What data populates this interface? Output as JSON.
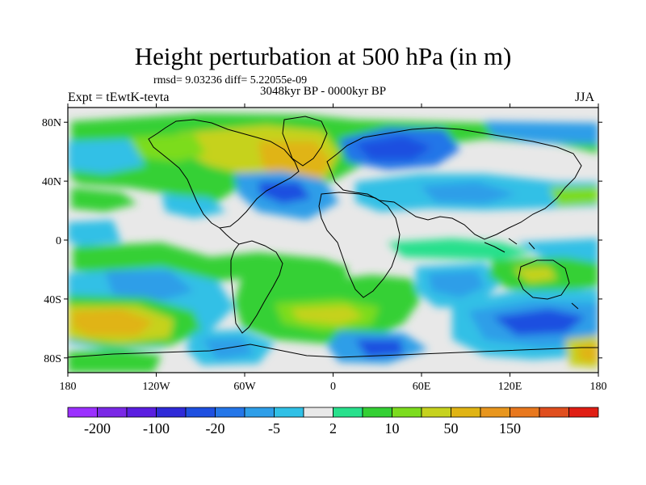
{
  "figure": {
    "title": "Height perturbation at 500 hPa (in m)",
    "stats": "rmsd= 9.03236 diff= 5.22055e-09",
    "period": "3048kyr BP - 0000kyr BP",
    "experiment": "Expt = tEwtK-tevta",
    "season": "JJA"
  },
  "map": {
    "projection": "cylindrical equidistant",
    "lon_range": [
      -180,
      180
    ],
    "lat_range": [
      -90,
      90
    ],
    "lat_ticks": [
      {
        "value": 80,
        "label": "80N"
      },
      {
        "value": 40,
        "label": "40N"
      },
      {
        "value": 0,
        "label": "0"
      },
      {
        "value": -40,
        "label": "40S"
      },
      {
        "value": -80,
        "label": "80S"
      }
    ],
    "lon_ticks": [
      {
        "value": -180,
        "label": "180"
      },
      {
        "value": -120,
        "label": "120W"
      },
      {
        "value": -60,
        "label": "60W"
      },
      {
        "value": 0,
        "label": "0"
      },
      {
        "value": 60,
        "label": "60E"
      },
      {
        "value": 120,
        "label": "120E"
      },
      {
        "value": 180,
        "label": "180"
      }
    ]
  },
  "colorbar": {
    "colors": [
      "#9b30ff",
      "#7a28e6",
      "#5a1ee0",
      "#2f2ad8",
      "#1e4fe0",
      "#2476e8",
      "#2e9ee8",
      "#30c0e6",
      "#e8e8e8",
      "#28e08c",
      "#34d034",
      "#7cdc1e",
      "#c6d21e",
      "#e0b414",
      "#e8961e",
      "#e8781e",
      "#e04e1e",
      "#e01e14"
    ],
    "labels": [
      {
        "boundary": 1,
        "text": "-200"
      },
      {
        "boundary": 3,
        "text": "-100"
      },
      {
        "boundary": 5,
        "text": "-20"
      },
      {
        "boundary": 7,
        "text": "-5"
      },
      {
        "boundary": 9,
        "text": "2"
      },
      {
        "boundary": 11,
        "text": "10"
      },
      {
        "boundary": 13,
        "text": "50"
      },
      {
        "boundary": 15,
        "text": "150"
      }
    ]
  }
}
